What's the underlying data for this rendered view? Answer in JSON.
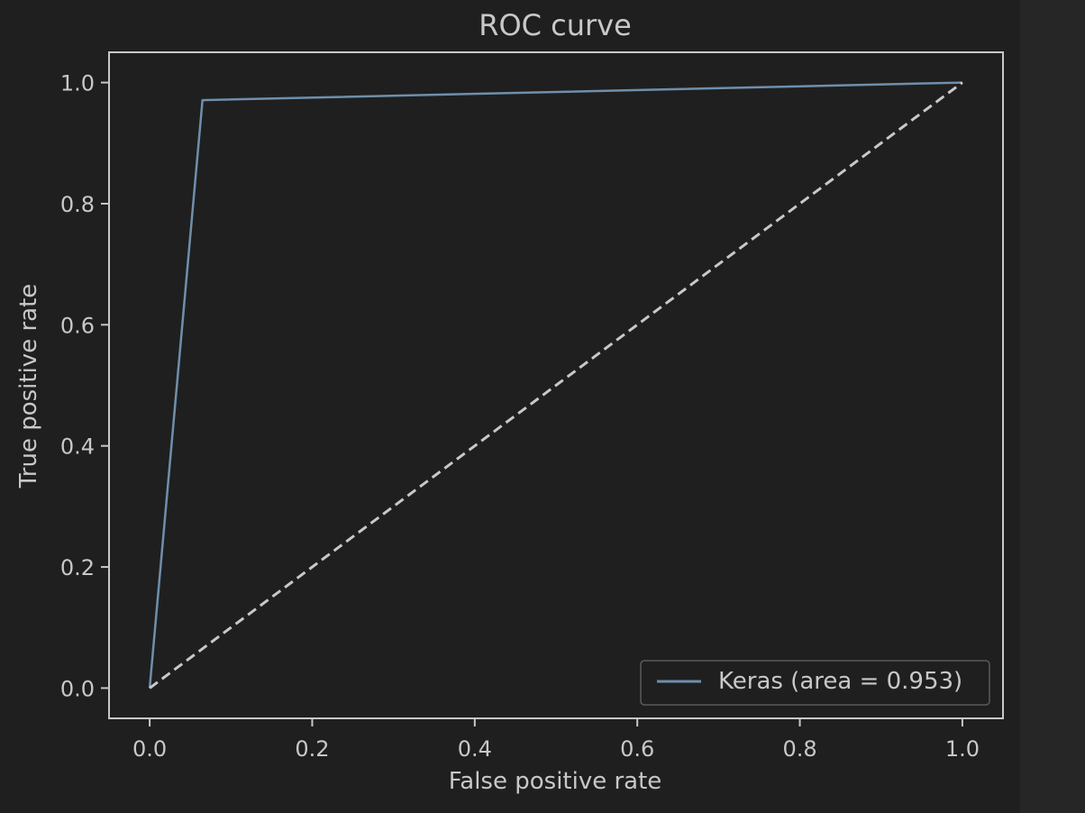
{
  "chart_data": {
    "type": "line",
    "title": "ROC curve",
    "xlabel": "False positive rate",
    "ylabel": "True positive rate",
    "xlim": [
      -0.05,
      1.05
    ],
    "ylim": [
      -0.05,
      1.05
    ],
    "xticks": [
      0.0,
      0.2,
      0.4,
      0.6,
      0.8,
      1.0
    ],
    "yticks": [
      0.0,
      0.2,
      0.4,
      0.6,
      0.8,
      1.0
    ],
    "xtick_labels": [
      "0.0",
      "0.2",
      "0.4",
      "0.6",
      "0.8",
      "1.0"
    ],
    "ytick_labels": [
      "0.0",
      "0.2",
      "0.4",
      "0.6",
      "0.8",
      "1.0"
    ],
    "grid": false,
    "legend": {
      "position": "lower-right"
    },
    "series": [
      {
        "name": "Keras (area = 0.953)",
        "x": [
          0.0,
          0.065,
          1.0
        ],
        "y": [
          0.0,
          0.971,
          1.0
        ],
        "color": "#6f8fac",
        "style": "solid"
      },
      {
        "x": [
          0.0,
          1.0
        ],
        "y": [
          0.0,
          1.0
        ],
        "color": "#c8c8c8",
        "style": "dashed"
      }
    ]
  },
  "colors": {
    "background": "#1f1f1f",
    "text": "#c8c8c8",
    "axes": "#c8c8c8"
  }
}
